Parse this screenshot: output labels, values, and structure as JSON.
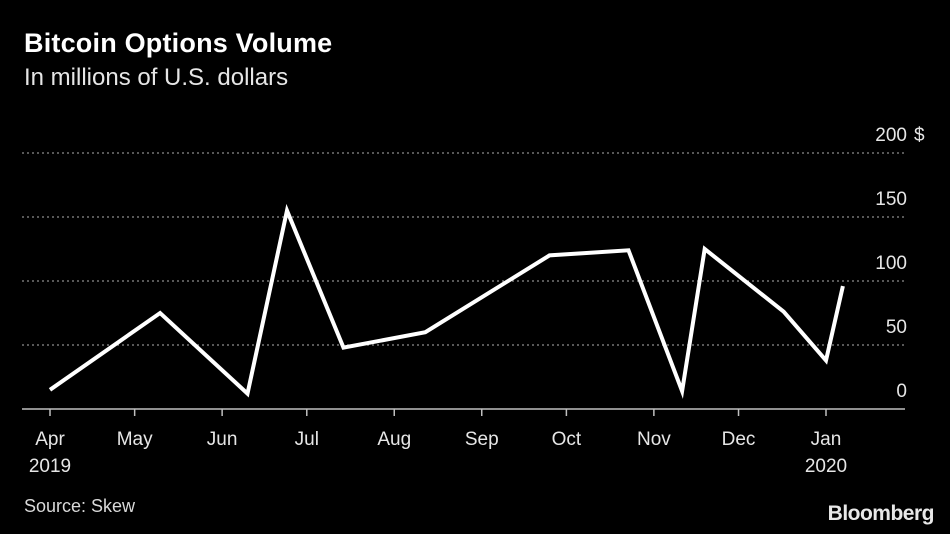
{
  "header": {
    "title": "Bitcoin Options Volume",
    "subtitle": "In millions of U.S. dollars"
  },
  "footer": {
    "source": "Source: Skew",
    "brand": "Bloomberg"
  },
  "colors": {
    "background": "#000000",
    "line": "#ffffff",
    "grid": "#8c8c8c"
  },
  "chart_data": {
    "type": "line",
    "title": "Bitcoin Options Volume",
    "subtitle": "In millions of U.S. dollars",
    "unit": "$",
    "ylim": [
      0,
      200
    ],
    "yticks": [
      0,
      50,
      100,
      150,
      200
    ],
    "y_axis_position": "right",
    "grid": "horizontal dotted",
    "xlim": [
      "2019-04-01",
      "2020-01-31"
    ],
    "x_tick_labels": [
      {
        "date": "2019-04-01",
        "label": "Apr",
        "sublabel": "2019"
      },
      {
        "date": "2019-05-01",
        "label": "May",
        "sublabel": ""
      },
      {
        "date": "2019-06-01",
        "label": "Jun",
        "sublabel": ""
      },
      {
        "date": "2019-07-01",
        "label": "Jul",
        "sublabel": ""
      },
      {
        "date": "2019-08-01",
        "label": "Aug",
        "sublabel": ""
      },
      {
        "date": "2019-09-01",
        "label": "Sep",
        "sublabel": ""
      },
      {
        "date": "2019-10-01",
        "label": "Oct",
        "sublabel": ""
      },
      {
        "date": "2019-11-01",
        "label": "Nov",
        "sublabel": ""
      },
      {
        "date": "2019-12-01",
        "label": "Dec",
        "sublabel": ""
      },
      {
        "date": "2020-01-01",
        "label": "Jan",
        "sublabel": "2020"
      }
    ],
    "series": [
      {
        "x": [
          "2019-04-01",
          "2019-05-10",
          "2019-06-10",
          "2019-06-24",
          "2019-07-14",
          "2019-08-12",
          "2019-09-25",
          "2019-10-23",
          "2019-11-11",
          "2019-11-19",
          "2019-12-17",
          "2020-01-01",
          "2020-01-07"
        ],
        "values": [
          15,
          75,
          12,
          155,
          48,
          60,
          120,
          124,
          14,
          125,
          76,
          38,
          96
        ]
      }
    ]
  }
}
